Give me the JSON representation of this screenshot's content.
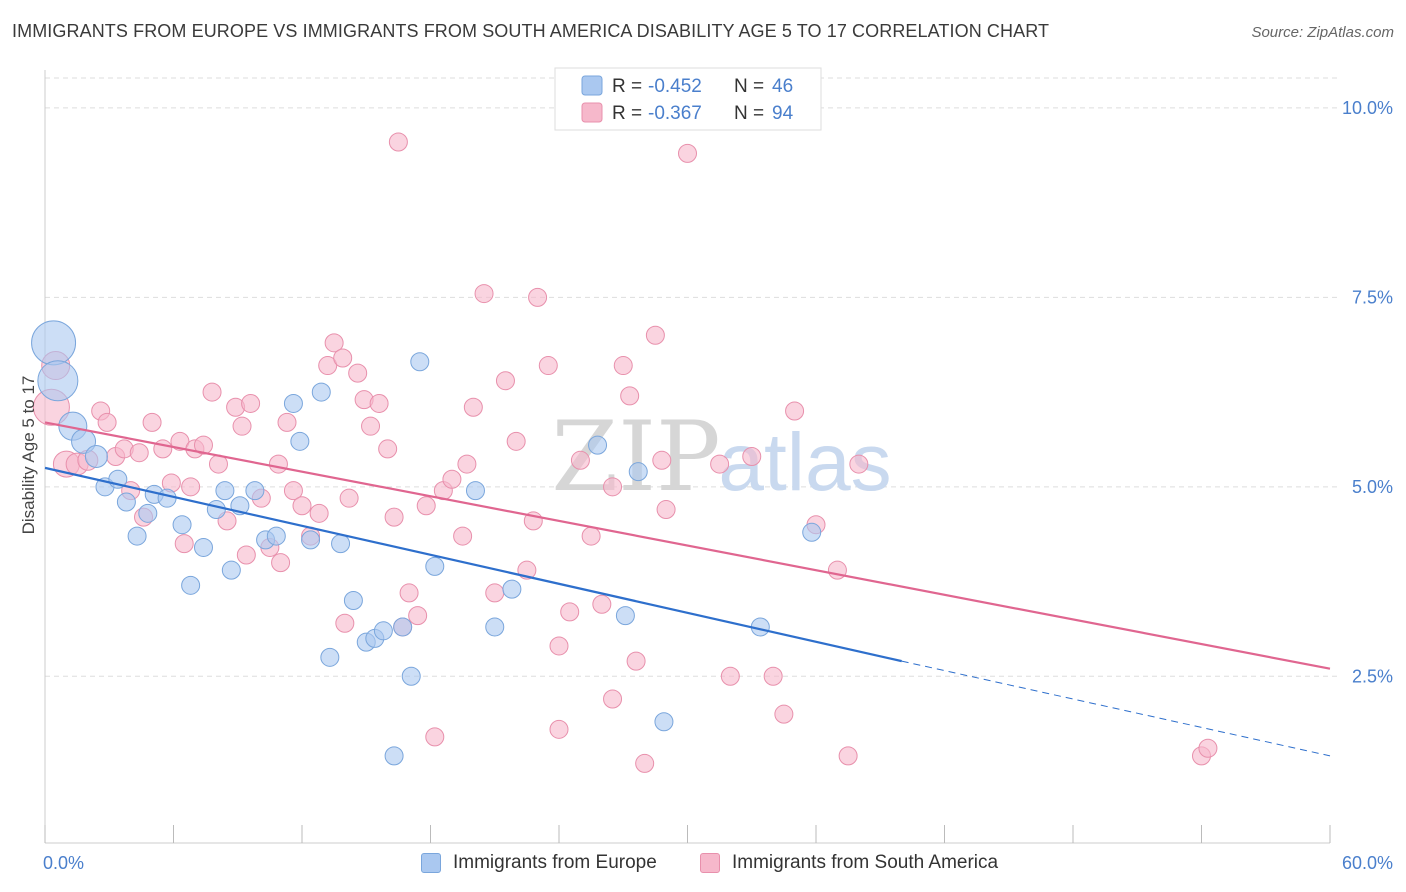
{
  "title": "IMMIGRANTS FROM EUROPE VS IMMIGRANTS FROM SOUTH AMERICA DISABILITY AGE 5 TO 17 CORRELATION CHART",
  "source": "Source: ZipAtlas.com",
  "watermark": {
    "zip": "ZIP",
    "atlas": "atlas"
  },
  "colors": {
    "europe_fill": "#aac8f0",
    "europe_stroke": "#7aa6dc",
    "europe_line": "#2e6fcc",
    "sa_fill": "#f6b8cb",
    "sa_stroke": "#e890ac",
    "sa_line": "#e06690",
    "axis_text": "#4a7fcc",
    "grid": "#dddddd"
  },
  "legend_top": {
    "rows": [
      {
        "r_label": "R =",
        "r_value": "-0.452",
        "n_label": "N =",
        "n_value": "46"
      },
      {
        "r_label": "R =",
        "r_value": "-0.367",
        "n_label": "N =",
        "n_value": "94"
      }
    ]
  },
  "legend_bottom": {
    "europe": "Immigrants from Europe",
    "south_america": "Immigrants from South America"
  },
  "chart_data": {
    "type": "scatter",
    "title": "IMMIGRANTS FROM EUROPE VS IMMIGRANTS FROM SOUTH AMERICA DISABILITY AGE 5 TO 17 CORRELATION CHART",
    "xlabel": "",
    "ylabel": "Disability Age 5 to 17",
    "xlim": [
      0,
      60
    ],
    "ylim": [
      0.3,
      10.5
    ],
    "x_tick_labels": [
      "0.0%",
      "60.0%"
    ],
    "y_ticks": [
      2.5,
      5.0,
      7.5,
      10.0
    ],
    "y_tick_labels": [
      "2.5%",
      "5.0%",
      "7.5%",
      "10.0%"
    ],
    "grid": true,
    "legend_position": "top-center",
    "series": [
      {
        "name": "Immigrants from Europe",
        "points": [
          [
            0.4,
            6.9,
            22
          ],
          [
            0.6,
            6.4,
            20
          ],
          [
            1.3,
            5.8,
            14
          ],
          [
            1.8,
            5.6,
            12
          ],
          [
            2.4,
            5.4,
            11
          ],
          [
            2.8,
            5.0,
            9
          ],
          [
            3.4,
            5.1,
            9
          ],
          [
            3.8,
            4.8,
            9
          ],
          [
            4.3,
            4.35,
            9
          ],
          [
            4.8,
            4.65,
            9
          ],
          [
            5.1,
            4.9,
            9
          ],
          [
            5.7,
            4.85,
            9
          ],
          [
            6.4,
            4.5,
            9
          ],
          [
            6.8,
            3.7,
            9
          ],
          [
            7.4,
            4.2,
            9
          ],
          [
            8.0,
            4.7,
            9
          ],
          [
            8.4,
            4.95,
            9
          ],
          [
            8.7,
            3.9,
            9
          ],
          [
            9.1,
            4.75,
            9
          ],
          [
            9.8,
            4.95,
            9
          ],
          [
            10.3,
            4.3,
            9
          ],
          [
            10.8,
            4.35,
            9
          ],
          [
            11.6,
            6.1,
            9
          ],
          [
            11.9,
            5.6,
            9
          ],
          [
            12.4,
            4.3,
            9
          ],
          [
            12.9,
            6.25,
            9
          ],
          [
            13.3,
            2.75,
            9
          ],
          [
            13.8,
            4.25,
            9
          ],
          [
            14.4,
            3.5,
            9
          ],
          [
            15.0,
            2.95,
            9
          ],
          [
            15.4,
            3.0,
            9
          ],
          [
            15.8,
            3.1,
            9
          ],
          [
            16.3,
            1.45,
            9
          ],
          [
            16.7,
            3.15,
            9
          ],
          [
            17.1,
            2.5,
            9
          ],
          [
            17.5,
            6.65,
            9
          ],
          [
            18.2,
            3.95,
            9
          ],
          [
            20.1,
            4.95,
            9
          ],
          [
            21.0,
            3.15,
            9
          ],
          [
            21.8,
            3.65,
            9
          ],
          [
            25.8,
            5.55,
            9
          ],
          [
            27.1,
            3.3,
            9
          ],
          [
            27.7,
            5.2,
            9
          ],
          [
            28.9,
            1.9,
            9
          ],
          [
            33.4,
            3.15,
            9
          ],
          [
            35.8,
            4.4,
            9
          ]
        ],
        "trend": {
          "x": [
            0,
            40
          ],
          "y": [
            5.25,
            2.7
          ]
        },
        "trend_dashed": {
          "x": [
            40,
            60
          ],
          "y": [
            2.7,
            1.45
          ]
        }
      },
      {
        "name": "Immigrants from South America",
        "points": [
          [
            0.3,
            6.05,
            18
          ],
          [
            0.5,
            6.6,
            14
          ],
          [
            1.0,
            5.3,
            13
          ],
          [
            1.5,
            5.3,
            11
          ],
          [
            2.0,
            5.35,
            10
          ],
          [
            2.6,
            6.0,
            9
          ],
          [
            2.9,
            5.85,
            9
          ],
          [
            3.3,
            5.4,
            9
          ],
          [
            3.7,
            5.5,
            9
          ],
          [
            4.0,
            4.95,
            9
          ],
          [
            4.4,
            5.45,
            9
          ],
          [
            4.6,
            4.6,
            9
          ],
          [
            5.0,
            5.85,
            9
          ],
          [
            5.5,
            5.5,
            9
          ],
          [
            5.9,
            5.05,
            9
          ],
          [
            6.3,
            5.6,
            9
          ],
          [
            6.5,
            4.25,
            9
          ],
          [
            7.0,
            5.5,
            9
          ],
          [
            7.4,
            5.55,
            9
          ],
          [
            7.8,
            6.25,
            9
          ],
          [
            8.1,
            5.3,
            9
          ],
          [
            8.5,
            4.55,
            9
          ],
          [
            8.9,
            6.05,
            9
          ],
          [
            9.2,
            5.8,
            9
          ],
          [
            9.6,
            6.1,
            9
          ],
          [
            10.1,
            4.85,
            9
          ],
          [
            10.5,
            4.2,
            9
          ],
          [
            10.9,
            5.3,
            9
          ],
          [
            11.3,
            5.85,
            9
          ],
          [
            11.6,
            4.95,
            9
          ],
          [
            12.0,
            4.75,
            9
          ],
          [
            12.4,
            4.35,
            9
          ],
          [
            12.8,
            4.65,
            9
          ],
          [
            13.2,
            6.6,
            9
          ],
          [
            13.5,
            6.9,
            9
          ],
          [
            13.9,
            6.7,
            9
          ],
          [
            14.2,
            4.85,
            9
          ],
          [
            14.6,
            6.5,
            9
          ],
          [
            14.9,
            6.15,
            9
          ],
          [
            15.2,
            5.8,
            9
          ],
          [
            15.6,
            6.1,
            9
          ],
          [
            16.0,
            5.5,
            9
          ],
          [
            16.3,
            4.6,
            9
          ],
          [
            16.7,
            3.15,
            9
          ],
          [
            17.0,
            3.6,
            9
          ],
          [
            17.4,
            3.3,
            9
          ],
          [
            17.8,
            4.75,
            9
          ],
          [
            18.2,
            1.7,
            9
          ],
          [
            18.6,
            4.95,
            9
          ],
          [
            19.0,
            5.1,
            9
          ],
          [
            19.5,
            4.35,
            9
          ],
          [
            20.0,
            6.05,
            9
          ],
          [
            20.5,
            7.55,
            9
          ],
          [
            21.0,
            3.6,
            9
          ],
          [
            21.5,
            6.4,
            9
          ],
          [
            22.0,
            5.6,
            9
          ],
          [
            22.5,
            3.9,
            9
          ],
          [
            23.0,
            7.5,
            9
          ],
          [
            23.5,
            6.6,
            9
          ],
          [
            24.0,
            1.8,
            9
          ],
          [
            24.5,
            3.35,
            9
          ],
          [
            25.0,
            5.35,
            9
          ],
          [
            25.5,
            4.35,
            9
          ],
          [
            26.0,
            3.45,
            9
          ],
          [
            26.5,
            2.2,
            9
          ],
          [
            27.0,
            6.6,
            9
          ],
          [
            27.3,
            6.2,
            9
          ],
          [
            27.6,
            2.7,
            9
          ],
          [
            28.0,
            1.35,
            9
          ],
          [
            28.5,
            7.0,
            9
          ],
          [
            29.0,
            4.7,
            9
          ],
          [
            30.0,
            9.4,
            9
          ],
          [
            31.5,
            5.3,
            9
          ],
          [
            32.0,
            2.5,
            9
          ],
          [
            34.0,
            2.5,
            9
          ],
          [
            34.5,
            2.0,
            9
          ],
          [
            35.0,
            6.0,
            9
          ],
          [
            36.0,
            4.5,
            9
          ],
          [
            37.0,
            3.9,
            9
          ],
          [
            37.5,
            1.45,
            9
          ],
          [
            38.0,
            5.3,
            9
          ],
          [
            6.8,
            5.0,
            9
          ],
          [
            9.4,
            4.1,
            9
          ],
          [
            11.0,
            4.0,
            9
          ],
          [
            14.0,
            3.2,
            9
          ],
          [
            16.5,
            9.55,
            9
          ],
          [
            19.7,
            5.3,
            9
          ],
          [
            22.8,
            4.55,
            9
          ],
          [
            24.0,
            2.9,
            9
          ],
          [
            26.5,
            5.0,
            9
          ],
          [
            28.8,
            5.35,
            9
          ],
          [
            33.0,
            5.4,
            9
          ],
          [
            54.0,
            1.45,
            9
          ],
          [
            54.3,
            1.55,
            9
          ]
        ],
        "trend": {
          "x": [
            0,
            60
          ],
          "y": [
            5.85,
            2.6
          ]
        }
      }
    ]
  }
}
